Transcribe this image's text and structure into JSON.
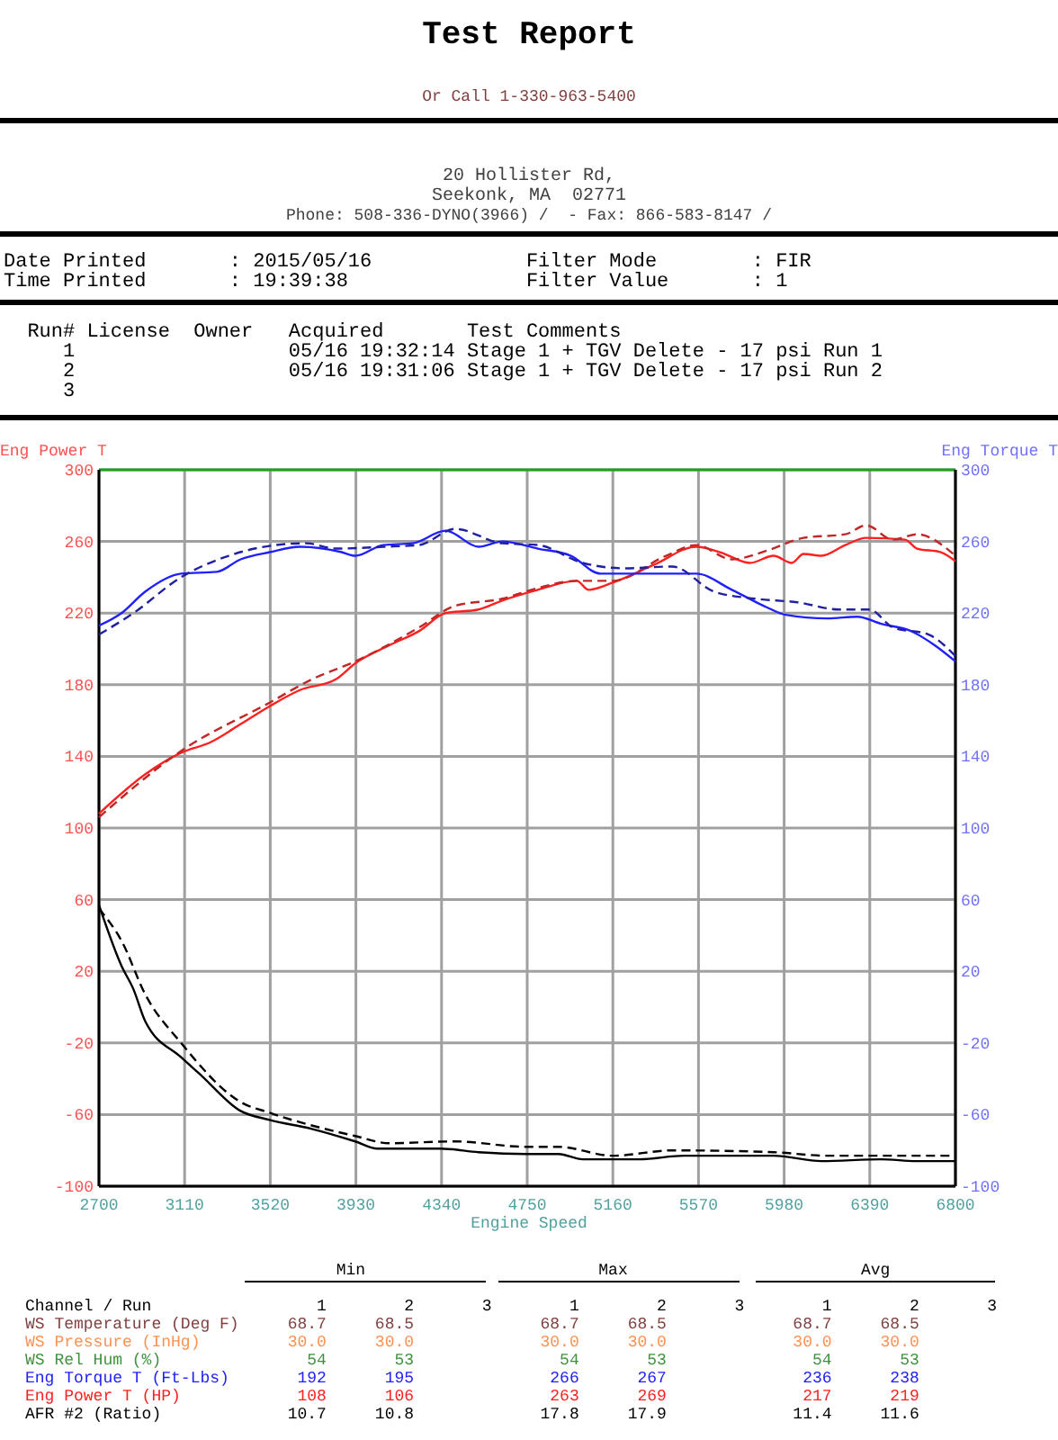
{
  "chart_data": {
    "type": "line",
    "title": "Test Report",
    "subtitle": "Or Call 1-330-963-5400",
    "xlabel": "Engine Speed",
    "ylabel": "Eng Power T",
    "y2label": "Eng Torque T",
    "xlim": [
      2700,
      6800
    ],
    "xticks": [
      2700,
      3110,
      3520,
      3930,
      4340,
      4750,
      5160,
      5570,
      5980,
      6390,
      6800
    ],
    "ylim": [
      -100,
      300
    ],
    "yticks": [
      -100,
      -60,
      -20,
      20,
      60,
      100,
      140,
      180,
      220,
      260,
      300
    ],
    "y2lim": [
      -100,
      300
    ],
    "y2ticks": [
      -100,
      -60,
      -20,
      20,
      60,
      100,
      140,
      180,
      220,
      260,
      300
    ],
    "grid": true,
    "series": [
      {
        "color": "#ff2020",
        "line_style": "solid",
        "x": [
          2700,
          2922,
          3093,
          3236,
          3378,
          3517,
          3662,
          3834,
          3927,
          4090,
          4233,
          4360,
          4517,
          4630,
          4801,
          4987,
          5044,
          5159,
          5358,
          5559,
          5673,
          5816,
          5930,
          6016,
          6073,
          6159,
          6273,
          6373,
          6559,
          6616,
          6730,
          6800
        ],
        "values": [
          108,
          130,
          142,
          148,
          158,
          168,
          177,
          183,
          192,
          202,
          210,
          220,
          222,
          227,
          233,
          238,
          233,
          237,
          247,
          257,
          254,
          248,
          252,
          248,
          253,
          252,
          258,
          262,
          261,
          256,
          254,
          249
        ]
      },
      {
        "color": "#c02828",
        "line_style": "dashed",
        "x": [
          2700,
          3093,
          3517,
          3719,
          3927,
          4233,
          4404,
          4630,
          4801,
          4987,
          5159,
          5415,
          5559,
          5730,
          5901,
          6073,
          6273,
          6373,
          6501,
          6616,
          6800
        ],
        "values": [
          106,
          143,
          170,
          183,
          193,
          212,
          224,
          228,
          234,
          238,
          238,
          252,
          258,
          250,
          255,
          262,
          264,
          269,
          261,
          264,
          252
        ]
      },
      {
        "color": "#2020ff",
        "line_style": "solid",
        "x": [
          2700,
          2808,
          2922,
          3093,
          3264,
          3378,
          3517,
          3662,
          3862,
          3927,
          4061,
          4203,
          4360,
          4517,
          4630,
          4801,
          4959,
          5101,
          5301,
          5559,
          5730,
          5901,
          5987,
          6187,
          6330,
          6444,
          6587,
          6701,
          6800
        ],
        "values": [
          213,
          220,
          232,
          242,
          243,
          250,
          254,
          257,
          254,
          252,
          258,
          259,
          266,
          257,
          260,
          256,
          252,
          242,
          242,
          242,
          233,
          223,
          219,
          217,
          218,
          214,
          210,
          202,
          193
        ]
      },
      {
        "color": "#2020a0",
        "line_style": "dashed",
        "x": [
          2700,
          2865,
          3093,
          3321,
          3548,
          3691,
          3834,
          4061,
          4233,
          4404,
          4630,
          4801,
          5016,
          5216,
          5444,
          5644,
          5844,
          6044,
          6244,
          6387,
          6501,
          6672,
          6800
        ],
        "values": [
          208,
          220,
          240,
          252,
          258,
          259,
          256,
          257,
          258,
          267,
          259,
          258,
          248,
          245,
          246,
          232,
          228,
          226,
          222,
          222,
          212,
          208,
          196
        ]
      },
      {
        "color": "#000000",
        "line_style": "solid",
        "x": [
          2700,
          2808,
          2865,
          2922,
          3093,
          3179,
          3378,
          3517,
          3719,
          3927,
          4033,
          4336,
          4517,
          4744,
          4900,
          5016,
          5287,
          5501,
          5930,
          6159,
          6444,
          6616,
          6800
        ],
        "values": [
          57,
          23,
          10,
          -8,
          -28,
          -37,
          -58,
          -63,
          -68,
          -75,
          -79,
          -79,
          -81,
          -82,
          -82,
          -85,
          -85,
          -83,
          -83,
          -86,
          -85,
          -86,
          -86
        ]
      },
      {
        "color": "#000000",
        "line_style": "dashed",
        "x": [
          2700,
          2808,
          2922,
          3093,
          3378,
          3517,
          3927,
          4090,
          4404,
          4744,
          4900,
          5159,
          5444,
          5930,
          6187,
          6800
        ],
        "values": [
          55,
          37,
          7,
          -20,
          -53,
          -59,
          -72,
          -76,
          -75,
          -78,
          -78,
          -83,
          -80,
          -81,
          -83,
          -83
        ]
      }
    ],
    "annotations": [
      "20 Hollister Rd,",
      "Seekonk, MA  02771",
      "Phone: 508-336-DYNO(3966) /  - Fax: 866-583-8147 /",
      "Date Printed       : 2015/05/16             Filter Mode        : FIR",
      "Time Printed       : 19:39:38               Filter Value       : 1",
      "  Run# License  Owner   Acquired       Test Comments",
      "     1                  05/16 19:32:14 Stage 1 + TGV Delete - 17 psi Run 1",
      "     2                  05/16 19:31:06 Stage 1 + TGV Delete - 17 psi Run 2",
      "     3",
      "                                Min                        Max                        Avg",
      "Channel / Run                 1        2       3        1        2       3        1        2       3",
      "WS Temperature (Deg F)     68.7     68.5             68.7     68.5             68.7     68.5",
      "WS Pressure (InHg)         30.0     30.0             30.0     30.0             30.0     30.0",
      "WS Rel Hum (%)               54       53               54       53               54       53",
      "Eng Torque T (Ft-Lbs)       192      195              266      267              236      238",
      "Eng Power T (HP)            108      106              263      269              217      219",
      "AFR #2 (Ratio)             10.7     10.8             17.8     17.9             11.4     11.6"
    ]
  }
}
